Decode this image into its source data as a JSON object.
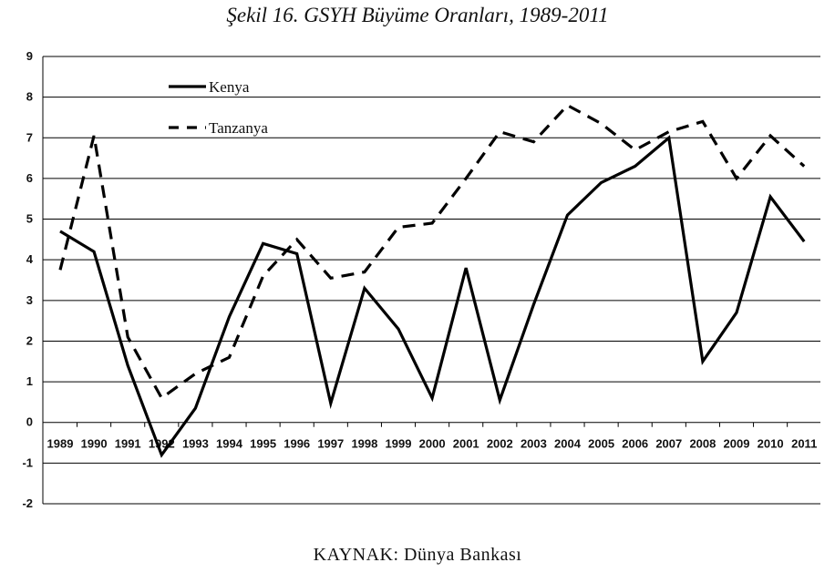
{
  "chart_data": {
    "type": "line",
    "title": "Şekil 16. GSYH Büyüme Oranları, 1989-2011",
    "source": "KAYNAK: Dünya Bankası",
    "xlabel": "",
    "ylabel": "",
    "ylim": [
      -2,
      9
    ],
    "yticks": [
      "9",
      "8",
      "7",
      "6",
      "5",
      "4",
      "3",
      "2",
      "1",
      "0",
      "-1",
      "-2"
    ],
    "grid": true,
    "legend_position": "top-left",
    "categories": [
      "1989",
      "1990",
      "1991",
      "1992",
      "1993",
      "1994",
      "1995",
      "1996",
      "1997",
      "1998",
      "1999",
      "2000",
      "2001",
      "2002",
      "2003",
      "2004",
      "2005",
      "2006",
      "2007",
      "2008",
      "2009",
      "2010",
      "2011"
    ],
    "series": [
      {
        "name": "Kenya",
        "style": "solid",
        "color": "#000000",
        "values": [
          4.7,
          4.2,
          1.4,
          -0.8,
          0.35,
          2.6,
          4.4,
          4.15,
          0.47,
          3.3,
          2.3,
          0.6,
          3.8,
          0.55,
          2.9,
          5.1,
          5.9,
          6.3,
          7.0,
          1.5,
          2.7,
          5.55,
          4.45
        ]
      },
      {
        "name": "Tanzanya",
        "style": "dashed",
        "color": "#000000",
        "values": [
          3.75,
          7.05,
          2.1,
          0.6,
          1.2,
          1.6,
          3.6,
          4.5,
          3.55,
          3.7,
          4.8,
          4.9,
          6.0,
          7.15,
          6.9,
          7.8,
          7.35,
          6.7,
          7.15,
          7.4,
          6.0,
          7.05,
          6.3
        ]
      }
    ]
  }
}
